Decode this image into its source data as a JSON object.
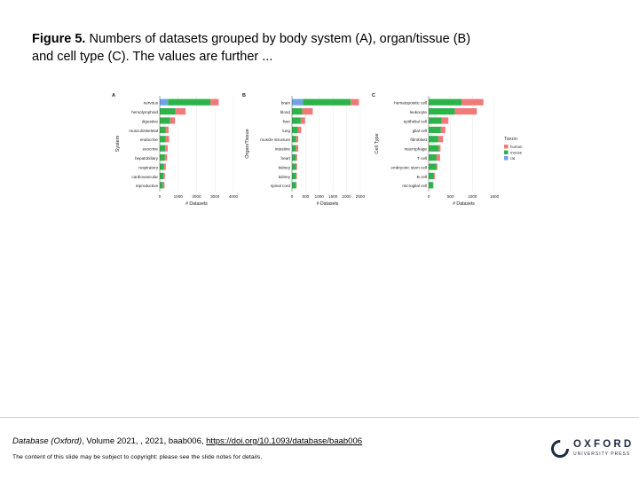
{
  "caption": {
    "label": "Figure 5.",
    "text": " Numbers of datasets grouped by body system (A), organ/tissue (B) and cell type (C). The values are further ..."
  },
  "footer": {
    "journal": "Database (Oxford)",
    "citation_rest": ", Volume 2021, , 2021, baab006,",
    "doi": "https://doi.org/10.1093/database/baab006",
    "copyright": "The content of this slide may be subject to copyright: please see the slide notes for details."
  },
  "logo": {
    "word": "OXFORD",
    "sub": "UNIVERSITY PRESS"
  },
  "colors": {
    "human": "#f07a7a",
    "mouse": "#2eb24a",
    "rat": "#6fa3e6"
  },
  "chart_data": [
    {
      "type": "bar",
      "stacked": true,
      "orientation": "horizontal",
      "panel_label": "A",
      "xlabel": "# Datasets",
      "ylabel": "System",
      "xlim": [
        0,
        4000
      ],
      "xticks": [
        0,
        1000,
        2000,
        3000,
        4000
      ],
      "categories": [
        "nervous",
        "hemolymphoid",
        "digestive",
        "musculoskeletal",
        "endocrine",
        "exocrine",
        "hepatobiliary",
        "respiratory",
        "cardiovascular",
        "reproductive"
      ],
      "series": [
        {
          "name": "rat",
          "values": [
            450,
            0,
            0,
            0,
            0,
            0,
            0,
            0,
            0,
            0
          ]
        },
        {
          "name": "mouse",
          "values": [
            2300,
            850,
            550,
            330,
            330,
            300,
            280,
            230,
            200,
            180
          ]
        },
        {
          "name": "human",
          "values": [
            450,
            550,
            280,
            150,
            180,
            130,
            120,
            100,
            80,
            80
          ]
        }
      ]
    },
    {
      "type": "bar",
      "stacked": true,
      "orientation": "horizontal",
      "panel_label": "B",
      "xlabel": "# Datasets",
      "ylabel": "Organ/Tissue",
      "xlim": [
        0,
        2600
      ],
      "xticks": [
        0,
        500,
        1000,
        1500,
        2000,
        2500
      ],
      "categories": [
        "brain",
        "blood",
        "liver",
        "lung",
        "muscle structure",
        "intestine",
        "heart",
        "kidney",
        "kidney",
        "spinal cord"
      ],
      "series": [
        {
          "name": "rat",
          "values": [
            400,
            0,
            0,
            0,
            0,
            0,
            0,
            0,
            0,
            0
          ]
        },
        {
          "name": "mouse",
          "values": [
            1750,
            380,
            320,
            220,
            150,
            150,
            150,
            150,
            150,
            150
          ]
        },
        {
          "name": "human",
          "values": [
            300,
            380,
            160,
            120,
            80,
            80,
            40,
            40,
            30,
            20
          ]
        }
      ]
    },
    {
      "type": "bar",
      "stacked": true,
      "orientation": "horizontal",
      "panel_label": "C",
      "xlabel": "# Datasets",
      "ylabel": "Cell Type",
      "xlim": [
        0,
        1600
      ],
      "xticks": [
        0,
        500,
        1000,
        1500
      ],
      "categories": [
        "hematopoietic cell",
        "leukocyte",
        "epithelial cell",
        "glial cell",
        "fibroblast",
        "macrophage",
        "T cell",
        "embryonic stem cell",
        "B cell",
        "microglial cell"
      ],
      "series": [
        {
          "name": "rat",
          "values": [
            0,
            0,
            0,
            0,
            0,
            0,
            0,
            0,
            0,
            0
          ]
        },
        {
          "name": "mouse",
          "values": [
            750,
            600,
            300,
            280,
            220,
            230,
            180,
            180,
            120,
            100
          ]
        },
        {
          "name": "human",
          "values": [
            500,
            500,
            150,
            100,
            110,
            40,
            80,
            20,
            20,
            10
          ]
        }
      ],
      "legend": {
        "title": "Taxon",
        "position": "right",
        "entries": [
          "human",
          "mouse",
          "rat"
        ]
      }
    }
  ]
}
